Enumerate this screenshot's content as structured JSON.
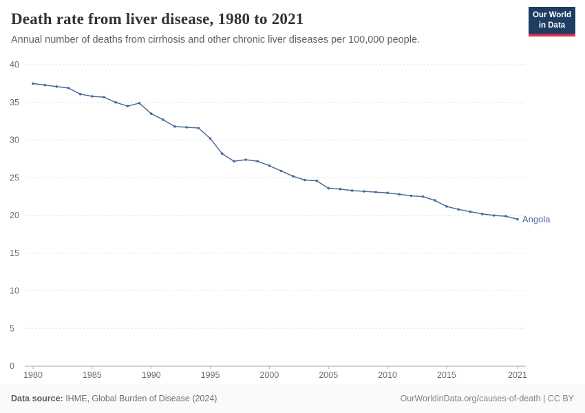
{
  "header": {
    "title": "Death rate from liver disease, 1980 to 2021",
    "subtitle": "Annual number of deaths from cirrhosis and other chronic liver diseases per 100,000 people.",
    "logo": {
      "line1": "Our World",
      "line2": "in Data",
      "bg_color": "#1d3d63",
      "accent_color": "#dc2c4c"
    }
  },
  "chart_data": {
    "type": "line",
    "title": "Death rate from liver disease, 1980 to 2021",
    "xlabel": "",
    "ylabel": "",
    "ylim": [
      0,
      40
    ],
    "xlim": [
      1980,
      2021
    ],
    "yticks": [
      0,
      5,
      10,
      15,
      20,
      25,
      30,
      35,
      40
    ],
    "xticks": [
      1980,
      1985,
      1990,
      1995,
      2000,
      2005,
      2010,
      2015,
      2021
    ],
    "grid": "dashed-horizontal",
    "legend_position": "end-of-line-label",
    "series": [
      {
        "name": "Angola",
        "color": "#4c6a9c",
        "x": [
          1980,
          1981,
          1982,
          1983,
          1984,
          1985,
          1986,
          1987,
          1988,
          1989,
          1990,
          1991,
          1992,
          1993,
          1994,
          1995,
          1996,
          1997,
          1998,
          1999,
          2000,
          2001,
          2002,
          2003,
          2004,
          2005,
          2006,
          2007,
          2008,
          2009,
          2010,
          2011,
          2012,
          2013,
          2014,
          2015,
          2016,
          2017,
          2018,
          2019,
          2020,
          2021
        ],
        "values": [
          37.5,
          37.3,
          37.1,
          36.9,
          36.1,
          35.8,
          35.7,
          35.0,
          34.5,
          34.9,
          33.5,
          32.7,
          31.8,
          31.7,
          31.6,
          30.2,
          28.2,
          27.2,
          27.4,
          27.2,
          26.6,
          25.9,
          25.2,
          24.7,
          24.6,
          23.6,
          23.5,
          23.3,
          23.2,
          23.1,
          23.0,
          22.8,
          22.6,
          22.5,
          22.0,
          21.2,
          20.8,
          20.5,
          20.2,
          20.0,
          19.9,
          19.5
        ]
      }
    ]
  },
  "footer": {
    "source_label": "Data source:",
    "source_value": " IHME, Global Burden of Disease (2024)",
    "right": "OurWorldinData.org/causes-of-death | CC BY"
  }
}
